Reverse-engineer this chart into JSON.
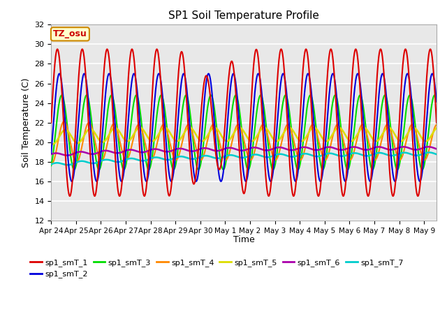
{
  "title": "SP1 Soil Temperature Profile",
  "xlabel": "Time",
  "ylabel": "Soil Temperature (C)",
  "ylim": [
    12,
    32
  ],
  "annotation": "TZ_osu",
  "background_color": "#e8e8e8",
  "grid_color": "white",
  "series_colors": {
    "sp1_smT_1": "#dd0000",
    "sp1_smT_2": "#0000dd",
    "sp1_smT_3": "#00dd00",
    "sp1_smT_4": "#ff8800",
    "sp1_smT_5": "#dddd00",
    "sp1_smT_6": "#aa00aa",
    "sp1_smT_7": "#00cccc"
  },
  "yticks": [
    12,
    14,
    16,
    18,
    20,
    22,
    24,
    26,
    28,
    30,
    32
  ],
  "x_tick_labels": [
    "Apr 24",
    "Apr 25",
    "Apr 26",
    "Apr 27",
    "Apr 28",
    "Apr 29",
    "Apr 30",
    "May 1",
    "May 2",
    "May 3",
    "May 4",
    "May 5",
    "May 6",
    "May 7",
    "May 8",
    "May 9"
  ],
  "num_days": 15.5
}
